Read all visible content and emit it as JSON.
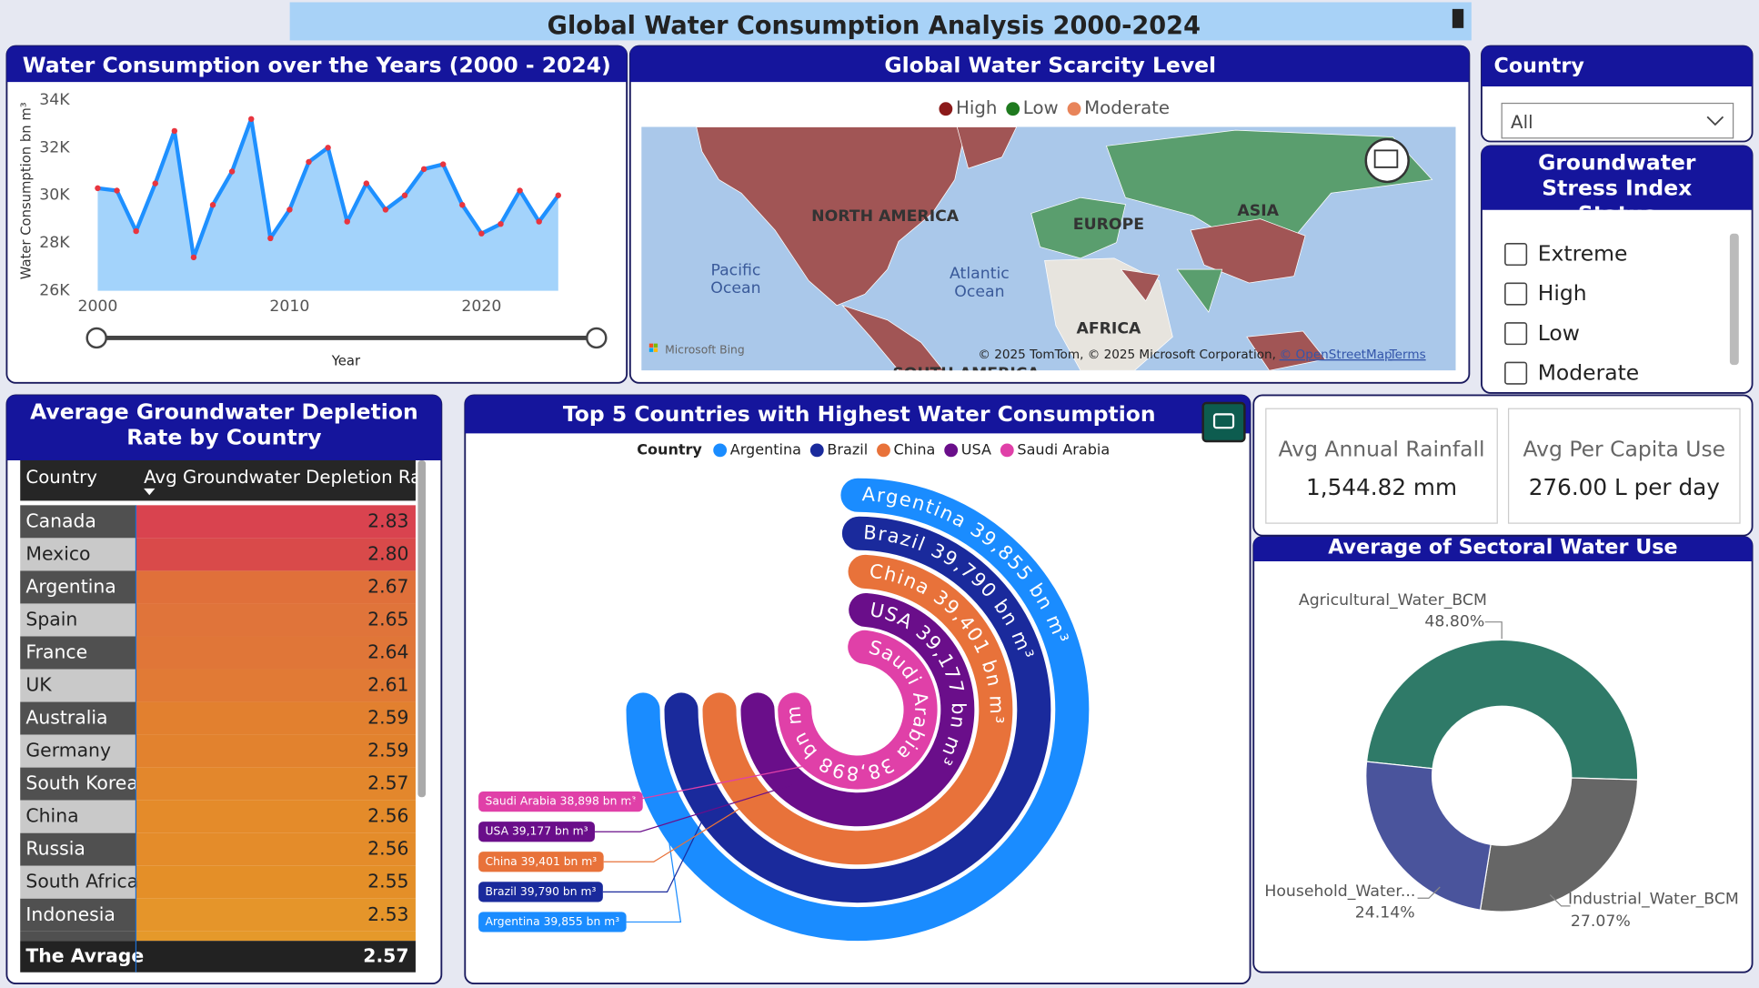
{
  "header": {
    "title": "Global Water Consumption Analysis 2000-2024"
  },
  "chart_data": [
    {
      "type": "line",
      "title": "Water Consumption over the Years (2000 - 2024)",
      "x_label": "Year",
      "y_label": "Water Consumption bn m³",
      "x": [
        2000,
        2001,
        2002,
        2003,
        2004,
        2005,
        2006,
        2007,
        2008,
        2009,
        2010,
        2011,
        2012,
        2013,
        2014,
        2015,
        2016,
        2017,
        2018,
        2019,
        2020,
        2021,
        2022,
        2023,
        2024
      ],
      "values": [
        30300,
        30200,
        28500,
        30500,
        32700,
        27400,
        29600,
        31000,
        33200,
        28200,
        29400,
        31400,
        32000,
        28900,
        30500,
        29400,
        30000,
        31100,
        31300,
        29600,
        28400,
        28800,
        30200,
        28900,
        30000
      ],
      "color": "#1e90ff",
      "marker_color": "#e8353f",
      "area_color": "#a3d3fb",
      "xlim": [
        2000,
        2024
      ],
      "xticks": [
        2000,
        2010,
        2020
      ],
      "ylim": [
        26000,
        34000
      ],
      "yticks": [
        {
          "value": 26000,
          "label": "26K"
        },
        {
          "value": 28000,
          "label": "28K"
        },
        {
          "value": 30000,
          "label": "30K"
        },
        {
          "value": 32000,
          "label": "32K"
        },
        {
          "value": 34000,
          "label": "34K"
        }
      ]
    },
    {
      "type": "radial_bar",
      "title": "Top 5 Countries with Highest Water Consumption",
      "legend_title": "Country",
      "categories": [
        "Argentina",
        "Brazil",
        "China",
        "USA",
        "Saudi Arabia"
      ],
      "values": [
        39855,
        39790,
        39401,
        39177,
        38898
      ],
      "value_labels": [
        "Argentina 39,855 bn m³",
        "Brazil 39,790 bn m³",
        "China 39,401 bn m³",
        "USA 39,177 bn m³",
        "Saudi Arabia 38,898 bn m³"
      ],
      "colors": [
        "#1a8cff",
        "#1a2a9c",
        "#e8723a",
        "#6a0e8a",
        "#e040a8"
      ]
    },
    {
      "type": "donut",
      "title": "Average of Sectoral Water Use",
      "categories": [
        "Agricultural_Water_BCM",
        "Industrial_Water_BCM",
        "Household_Water..."
      ],
      "values": [
        48.8,
        27.07,
        24.14
      ],
      "value_labels": [
        "48.80%",
        "27.07%",
        "24.14%"
      ],
      "colors": [
        "#2f7a68",
        "#666666",
        "#4a549c"
      ]
    }
  ],
  "map": {
    "title": "Global Water Scarcity Level",
    "legend": [
      {
        "name": "High",
        "color": "#8b1a1a"
      },
      {
        "name": "Low",
        "color": "#1f7a1f"
      },
      {
        "name": "Moderate",
        "color": "#e8845a"
      }
    ],
    "labels": [
      "NORTH AMERICA",
      "EUROPE",
      "ASIA",
      "AFRICA",
      "Pacific Ocean",
      "Atlantic Ocean",
      "SOUTH AMERICA"
    ],
    "provider": "Microsoft Bing",
    "attribution": "© 2025 TomTom, © 2025 Microsoft Corporation,",
    "osm": "© OpenStreetMap",
    "terms": "Terms"
  },
  "country_slicer": {
    "title": "Country",
    "selected": "All"
  },
  "stress_slicer": {
    "title": "Groundwater Stress Index Status",
    "options": [
      "Extreme",
      "High",
      "Low",
      "Moderate"
    ]
  },
  "depletion_table": {
    "title": "Average Groundwater Depletion Rate by Country",
    "columns": [
      "Country",
      "Avg Groundwater Depletion Rate"
    ],
    "rows": [
      [
        "Canada",
        "2.83"
      ],
      [
        "Mexico",
        "2.80"
      ],
      [
        "Argentina",
        "2.67"
      ],
      [
        "Spain",
        "2.65"
      ],
      [
        "France",
        "2.64"
      ],
      [
        "UK",
        "2.61"
      ],
      [
        "Australia",
        "2.59"
      ],
      [
        "Germany",
        "2.59"
      ],
      [
        "South Korea",
        "2.57"
      ],
      [
        "China",
        "2.56"
      ],
      [
        "Russia",
        "2.56"
      ],
      [
        "South Africa",
        "2.55"
      ],
      [
        "Indonesia",
        "2.53"
      ]
    ],
    "bar_colors": [
      "#d9434f",
      "#d94a4a",
      "#e0703a",
      "#e0743a",
      "#e07638",
      "#e17a35",
      "#e2802f",
      "#e2822e",
      "#e3872c",
      "#e48b2a",
      "#e48c2a",
      "#e48f28",
      "#e5952a"
    ],
    "total": [
      "The Avrage",
      "2.57"
    ]
  },
  "cards": [
    {
      "label": "Avg Annual Rainfall",
      "value": "1,544.82 mm"
    },
    {
      "label": "Avg Per Capita Use",
      "value": "276.00 L per day"
    }
  ]
}
